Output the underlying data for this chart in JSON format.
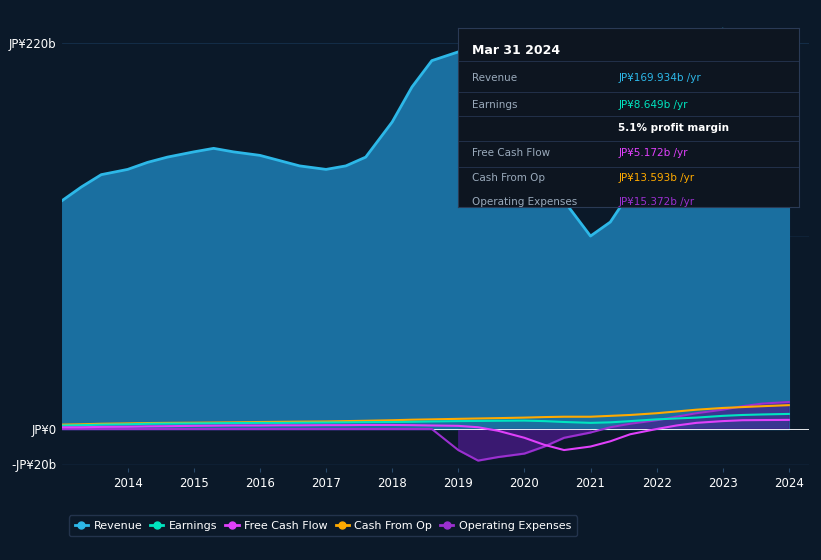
{
  "bg_color": "#0b1929",
  "plot_bg_color": "#0b1929",
  "grid_color": "#1a3a5c",
  "colors": {
    "revenue": "#2db8e8",
    "revenue_fill": "#1a6fa0",
    "earnings": "#00e5c0",
    "free_cash_flow": "#e040fb",
    "cash_from_op": "#ffaa00",
    "operating_expenses": "#9b30d0",
    "operating_expenses_fill": "#4a1a8a"
  },
  "legend_labels": [
    "Revenue",
    "Earnings",
    "Free Cash Flow",
    "Cash From Op",
    "Operating Expenses"
  ],
  "years": [
    2013.0,
    2013.3,
    2013.6,
    2014.0,
    2014.3,
    2014.6,
    2015.0,
    2015.3,
    2015.6,
    2016.0,
    2016.3,
    2016.6,
    2017.0,
    2017.3,
    2017.6,
    2018.0,
    2018.3,
    2018.6,
    2019.0,
    2019.3,
    2019.6,
    2020.0,
    2020.3,
    2020.6,
    2021.0,
    2021.3,
    2021.6,
    2022.0,
    2022.3,
    2022.6,
    2023.0,
    2023.3,
    2023.6,
    2024.0
  ],
  "revenue": [
    130,
    138,
    145,
    148,
    152,
    155,
    158,
    160,
    158,
    156,
    153,
    150,
    148,
    150,
    155,
    175,
    195,
    210,
    215,
    212,
    205,
    185,
    160,
    130,
    110,
    118,
    135,
    155,
    175,
    205,
    228,
    218,
    195,
    170
  ],
  "earnings": [
    2.0,
    2.2,
    2.5,
    2.7,
    3.0,
    3.1,
    3.2,
    3.3,
    3.4,
    3.5,
    3.5,
    3.6,
    3.7,
    3.8,
    3.9,
    4.0,
    4.1,
    4.3,
    4.5,
    4.6,
    4.7,
    4.8,
    4.5,
    4.0,
    3.5,
    3.8,
    4.5,
    5.5,
    6.0,
    6.5,
    7.5,
    8.0,
    8.3,
    8.6
  ],
  "free_cash_flow": [
    1.0,
    1.0,
    1.2,
    1.3,
    1.5,
    1.6,
    1.8,
    1.9,
    2.0,
    2.0,
    2.1,
    2.1,
    2.2,
    2.2,
    2.3,
    2.3,
    2.2,
    2.0,
    1.8,
    1.0,
    -1.0,
    -5.0,
    -9.0,
    -12.0,
    -10.0,
    -7.0,
    -3.0,
    0.0,
    2.0,
    3.5,
    4.5,
    5.0,
    5.1,
    5.2
  ],
  "cash_from_op": [
    2.5,
    2.7,
    3.0,
    3.2,
    3.4,
    3.5,
    3.6,
    3.7,
    3.8,
    4.0,
    4.1,
    4.2,
    4.3,
    4.5,
    4.7,
    5.0,
    5.3,
    5.5,
    5.8,
    6.0,
    6.2,
    6.5,
    6.8,
    7.0,
    7.0,
    7.5,
    8.0,
    9.0,
    10.0,
    11.0,
    12.0,
    12.5,
    13.0,
    13.6
  ],
  "operating_expenses": [
    0.0,
    0.0,
    0.0,
    0.0,
    0.0,
    0.0,
    0.0,
    0.0,
    0.0,
    0.0,
    0.0,
    0.0,
    0.0,
    0.0,
    0.0,
    0.0,
    0.0,
    0.0,
    -12.0,
    -18.0,
    -16.0,
    -14.0,
    -10.0,
    -5.0,
    -2.0,
    1.0,
    3.0,
    5.0,
    7.0,
    9.0,
    11.0,
    13.0,
    14.5,
    15.4
  ],
  "ylim": [
    -22,
    235
  ],
  "xlim": [
    2013.0,
    2024.3
  ],
  "ytick_positions": [
    220,
    0,
    -20
  ],
  "ytick_labels": [
    "JP¥220b",
    "JP¥0",
    "-JP¥20b"
  ],
  "xtick_positions": [
    2014,
    2015,
    2016,
    2017,
    2018,
    2019,
    2020,
    2021,
    2022,
    2023,
    2024
  ],
  "tooltip": {
    "title": "Mar 31 2024",
    "rows": [
      {
        "label": "Revenue",
        "value": "JP¥169.934b /yr",
        "value_color": "#2db8e8"
      },
      {
        "label": "Earnings",
        "value": "JP¥8.649b /yr",
        "value_color": "#00e5c0"
      },
      {
        "label": "",
        "value": "5.1% profit margin",
        "value_color": "#ffffff",
        "bold": true
      },
      {
        "label": "Free Cash Flow",
        "value": "JP¥5.172b /yr",
        "value_color": "#e040fb"
      },
      {
        "label": "Cash From Op",
        "value": "JP¥13.593b /yr",
        "value_color": "#ffaa00"
      },
      {
        "label": "Operating Expenses",
        "value": "JP¥15.372b /yr",
        "value_color": "#9b30d0"
      }
    ]
  }
}
